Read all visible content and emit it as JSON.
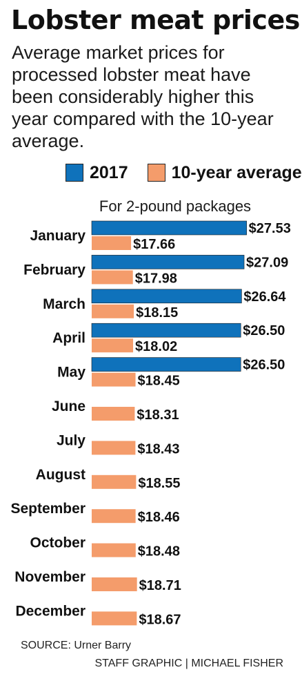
{
  "header": {
    "title": "Lobster meat prices",
    "subtitle": "Average market prices for processed lobster meat have been considerably higher this year compared with the 10-year average."
  },
  "legend": {
    "series_2017_label": "2017",
    "series_avg_label": "10-year average"
  },
  "chart_note": "For 2-pound packages",
  "colors": {
    "series_2017": "#0f72bb",
    "series_avg": "#f49c6b"
  },
  "chart_data": {
    "type": "bar",
    "orientation": "horizontal",
    "subtitle": "For 2-pound packages",
    "categories": [
      "January",
      "February",
      "March",
      "April",
      "May",
      "June",
      "July",
      "August",
      "September",
      "October",
      "November",
      "December"
    ],
    "series": [
      {
        "name": "2017",
        "values": [
          27.53,
          27.09,
          26.64,
          26.5,
          26.5,
          null,
          null,
          null,
          null,
          null,
          null,
          null
        ],
        "labels": [
          "$27.53",
          "$27.09",
          "$26.64",
          "$26.50",
          "$26.50",
          "",
          "",
          "",
          "",
          "",
          "",
          ""
        ]
      },
      {
        "name": "10-year average",
        "values": [
          17.66,
          17.98,
          18.15,
          18.02,
          18.45,
          18.31,
          18.43,
          18.55,
          18.46,
          18.48,
          18.71,
          18.67
        ],
        "labels": [
          "$17.66",
          "$17.98",
          "$18.15",
          "$18.02",
          "$18.45",
          "$18.31",
          "$18.43",
          "$18.55",
          "$18.46",
          "$18.48",
          "$18.71",
          "$18.67"
        ]
      }
    ],
    "axes_shown": false,
    "grid": false,
    "legend_position": "top"
  },
  "footer": {
    "source": "SOURCE: Urner Barry",
    "credit": "STAFF GRAPHIC | MICHAEL FISHER"
  }
}
